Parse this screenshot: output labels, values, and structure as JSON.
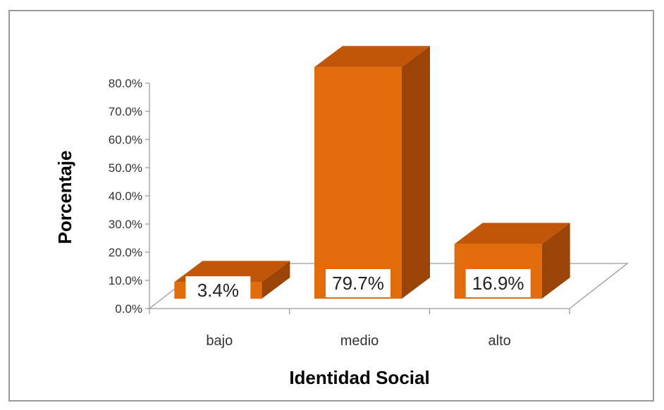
{
  "chart_data": {
    "type": "bar",
    "style": "3d-column",
    "categories": [
      "bajo",
      "medio",
      "alto"
    ],
    "values": [
      3.4,
      79.7,
      16.9
    ],
    "data_labels": [
      "3.4%",
      "79.7%",
      "16.9%"
    ],
    "ylabel": "Porcentaje",
    "xlabel": "Identidad Social",
    "ylim": [
      0,
      80
    ],
    "yticks": [
      "0.0%",
      "10.0%",
      "20.0%",
      "30.0%",
      "40.0%",
      "50.0%",
      "60.0%",
      "70.0%",
      "80.0%"
    ],
    "grid": false,
    "legend": "none",
    "colors": {
      "bar_front": "#E36C0A",
      "bar_top": "#C25608",
      "bar_side": "#9A4408",
      "floor_line": "#9a9a9a"
    }
  }
}
